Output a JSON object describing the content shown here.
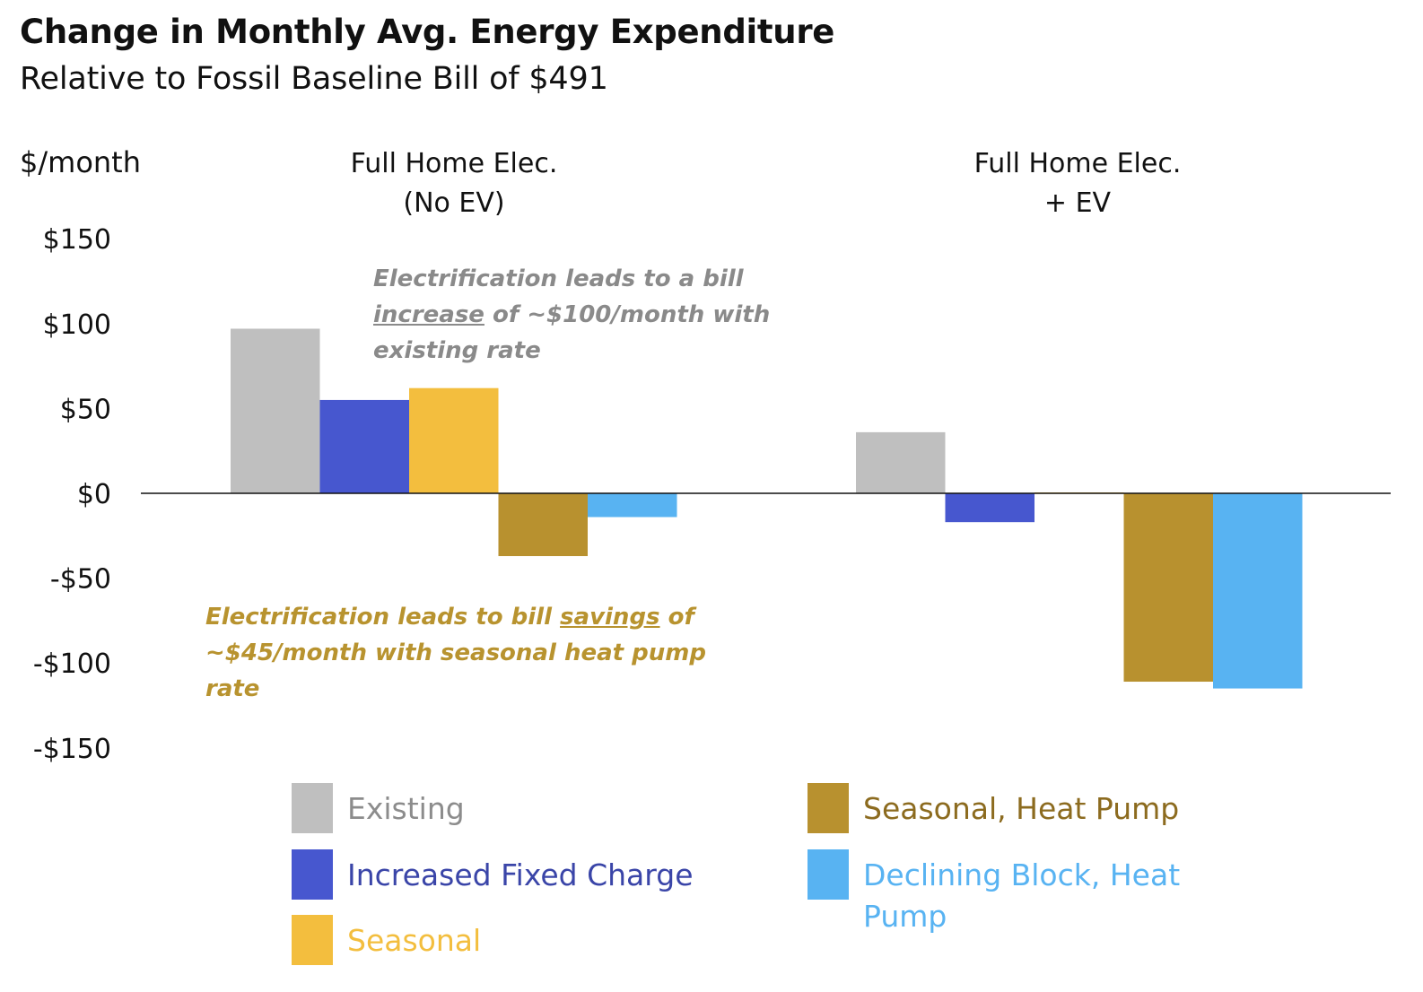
{
  "chart_data": {
    "type": "bar",
    "title": "Change in Monthly Avg. Energy Expenditure",
    "subtitle": "Relative to Fossil Baseline Bill of $491",
    "ylabel": "$/month",
    "ylim": [
      -150,
      150
    ],
    "yticks": [
      "$150",
      "$100",
      "$50",
      "$0",
      "-$50",
      "-$100",
      "-$150"
    ],
    "ytick_values": [
      150,
      100,
      50,
      0,
      -50,
      -100,
      -150
    ],
    "categories": [
      "Full Home Elec.\n(No EV)",
      "Full Home Elec.\n+ EV"
    ],
    "category_lines": [
      [
        "Full Home Elec.",
        "(No EV)"
      ],
      [
        "Full Home Elec.",
        "+ EV"
      ]
    ],
    "series": [
      {
        "name": "Existing",
        "color": "#bfbfbf",
        "text_color": "#8c8c8c",
        "values": [
          97,
          36
        ]
      },
      {
        "name": "Increased Fixed Charge",
        "color": "#4757cf",
        "text_color": "#3a45a8",
        "values": [
          55,
          -17
        ]
      },
      {
        "name": "Seasonal",
        "color": "#f3be3e",
        "text_color": "#f3be3e",
        "values": [
          62,
          0
        ]
      },
      {
        "name": "Seasonal, Heat Pump",
        "color": "#b8912f",
        "text_color": "#8c6b1f",
        "values": [
          -37,
          -111
        ]
      },
      {
        "name": "Declining Block, Heat Pump",
        "color": "#58b3f2",
        "text_color": "#58b3f2",
        "values": [
          -14,
          -115
        ]
      }
    ],
    "legend": {
      "placement": "bottom"
    },
    "grid": false,
    "annotations": [
      {
        "pre": "Electrification leads to a bill ",
        "emph": "increase",
        "post": " of ~$100/month with existing rate",
        "color": "#8a8a8a"
      },
      {
        "pre": "Electrification leads to bill ",
        "emph": "savings",
        "post": " of ~$45/month with seasonal heat pump rate",
        "color": "#b8932f"
      }
    ]
  }
}
